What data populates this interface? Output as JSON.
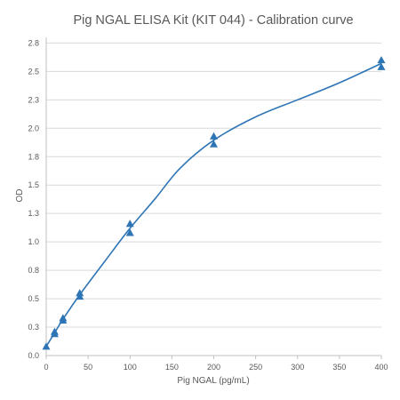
{
  "chart_data": {
    "type": "scatter",
    "title": "Pig NGAL ELISA Kit (KIT 044) - Calibration curve",
    "xlabel": "Pig NGAL (pg/mL)",
    "ylabel": "OD",
    "xlim": [
      0,
      400
    ],
    "ylim": [
      0,
      2.8
    ],
    "x_ticks": [
      0,
      50,
      100,
      150,
      200,
      250,
      300,
      350,
      400
    ],
    "y_ticks": [
      "0.0",
      "0.3",
      "0.5",
      "0.8",
      "1.0",
      "1.3",
      "1.5",
      "1.8",
      "2.0",
      "2.3",
      "2.5",
      "2.8"
    ],
    "y_tick_values": [
      0,
      0.25,
      0.5,
      0.75,
      1.0,
      1.25,
      1.5,
      1.75,
      2.0,
      2.25,
      2.5,
      2.75
    ],
    "grid": "horizontal",
    "legend": "none",
    "series": [
      {
        "marker": "triangle",
        "color": "#2e75b6",
        "points": [
          [
            0,
            0.08
          ],
          [
            10,
            0.19
          ],
          [
            10,
            0.21
          ],
          [
            20,
            0.31
          ],
          [
            20,
            0.33
          ],
          [
            40,
            0.52
          ],
          [
            40,
            0.55
          ],
          [
            100,
            1.08
          ],
          [
            100,
            1.16
          ],
          [
            200,
            1.86
          ],
          [
            200,
            1.93
          ],
          [
            400,
            2.54
          ],
          [
            400,
            2.6
          ]
        ]
      }
    ],
    "fit_curve": {
      "color": "#2e75b6",
      "points": [
        [
          0,
          0.08
        ],
        [
          10,
          0.2
        ],
        [
          20,
          0.32
        ],
        [
          40,
          0.535
        ],
        [
          70,
          0.83
        ],
        [
          100,
          1.12
        ],
        [
          130,
          1.38
        ],
        [
          160,
          1.65
        ],
        [
          200,
          1.895
        ],
        [
          250,
          2.1
        ],
        [
          300,
          2.25
        ],
        [
          350,
          2.4
        ],
        [
          400,
          2.57
        ]
      ]
    }
  }
}
